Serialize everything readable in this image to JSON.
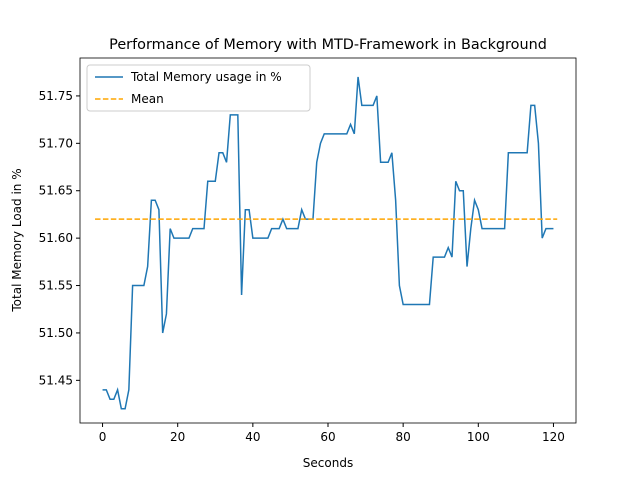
{
  "chart_data": {
    "type": "line",
    "title": "Performance of Memory with MTD-Framework in Background",
    "xlabel": "Seconds",
    "ylabel": "Total Memory Load in %",
    "series": [
      {
        "name": "Total Memory usage in %",
        "color": "#1f77b4",
        "dash": false,
        "x": [
          0,
          1,
          2,
          3,
          4,
          5,
          6,
          7,
          8,
          9,
          10,
          11,
          12,
          13,
          14,
          15,
          16,
          17,
          18,
          19,
          20,
          21,
          22,
          23,
          24,
          25,
          26,
          27,
          28,
          29,
          30,
          31,
          32,
          33,
          34,
          35,
          36,
          37,
          38,
          39,
          40,
          41,
          42,
          43,
          44,
          45,
          46,
          47,
          48,
          49,
          50,
          51,
          52,
          53,
          54,
          55,
          56,
          57,
          58,
          59,
          60,
          61,
          62,
          63,
          64,
          65,
          66,
          67,
          68,
          69,
          70,
          71,
          72,
          73,
          74,
          75,
          76,
          77,
          78,
          79,
          80,
          81,
          82,
          83,
          84,
          85,
          86,
          87,
          88,
          89,
          90,
          91,
          92,
          93,
          94,
          95,
          96,
          97,
          98,
          99,
          100,
          101,
          102,
          103,
          104,
          105,
          106,
          107,
          108,
          109,
          110,
          111,
          112,
          113,
          114,
          115,
          116,
          117,
          118,
          119,
          120
        ],
        "values": [
          51.44,
          51.44,
          51.43,
          51.43,
          51.44,
          51.42,
          51.42,
          51.44,
          51.55,
          51.55,
          51.55,
          51.55,
          51.57,
          51.64,
          51.64,
          51.63,
          51.5,
          51.52,
          51.61,
          51.6,
          51.6,
          51.6,
          51.6,
          51.6,
          51.61,
          51.61,
          51.61,
          51.61,
          51.66,
          51.66,
          51.66,
          51.69,
          51.69,
          51.68,
          51.73,
          51.73,
          51.73,
          51.54,
          51.63,
          51.63,
          51.6,
          51.6,
          51.6,
          51.6,
          51.6,
          51.61,
          51.61,
          51.61,
          51.62,
          51.61,
          51.61,
          51.61,
          51.61,
          51.63,
          51.62,
          51.62,
          51.62,
          51.68,
          51.7,
          51.71,
          51.71,
          51.71,
          51.71,
          51.71,
          51.71,
          51.71,
          51.72,
          51.71,
          51.77,
          51.74,
          51.74,
          51.74,
          51.74,
          51.75,
          51.68,
          51.68,
          51.68,
          51.69,
          51.64,
          51.55,
          51.53,
          51.53,
          51.53,
          51.53,
          51.53,
          51.53,
          51.53,
          51.53,
          51.58,
          51.58,
          51.58,
          51.58,
          51.59,
          51.58,
          51.66,
          51.65,
          51.65,
          51.57,
          51.61,
          51.64,
          51.63,
          51.61,
          51.61,
          51.61,
          51.61,
          51.61,
          51.61,
          51.61,
          51.69,
          51.69,
          51.69,
          51.69,
          51.69,
          51.69,
          51.74,
          51.74,
          51.7,
          51.6,
          51.61,
          51.61,
          51.61
        ]
      },
      {
        "name": "Mean",
        "color": "#ffa500",
        "dash": true,
        "x": [
          -2,
          121
        ],
        "values": [
          51.62,
          51.62
        ]
      }
    ],
    "xlim": [
      -6,
      126
    ],
    "ylim": [
      51.405,
      51.79
    ],
    "xticks": [
      0,
      20,
      40,
      60,
      80,
      100,
      120
    ],
    "yticks": [
      51.45,
      {
        "value": 51.5,
        "label": "51.50"
      },
      51.55,
      {
        "value": 51.6,
        "label": "51.60"
      },
      51.65,
      {
        "value": 51.7,
        "label": "51.70"
      },
      51.75
    ],
    "grid": false,
    "legend": "upper left"
  }
}
